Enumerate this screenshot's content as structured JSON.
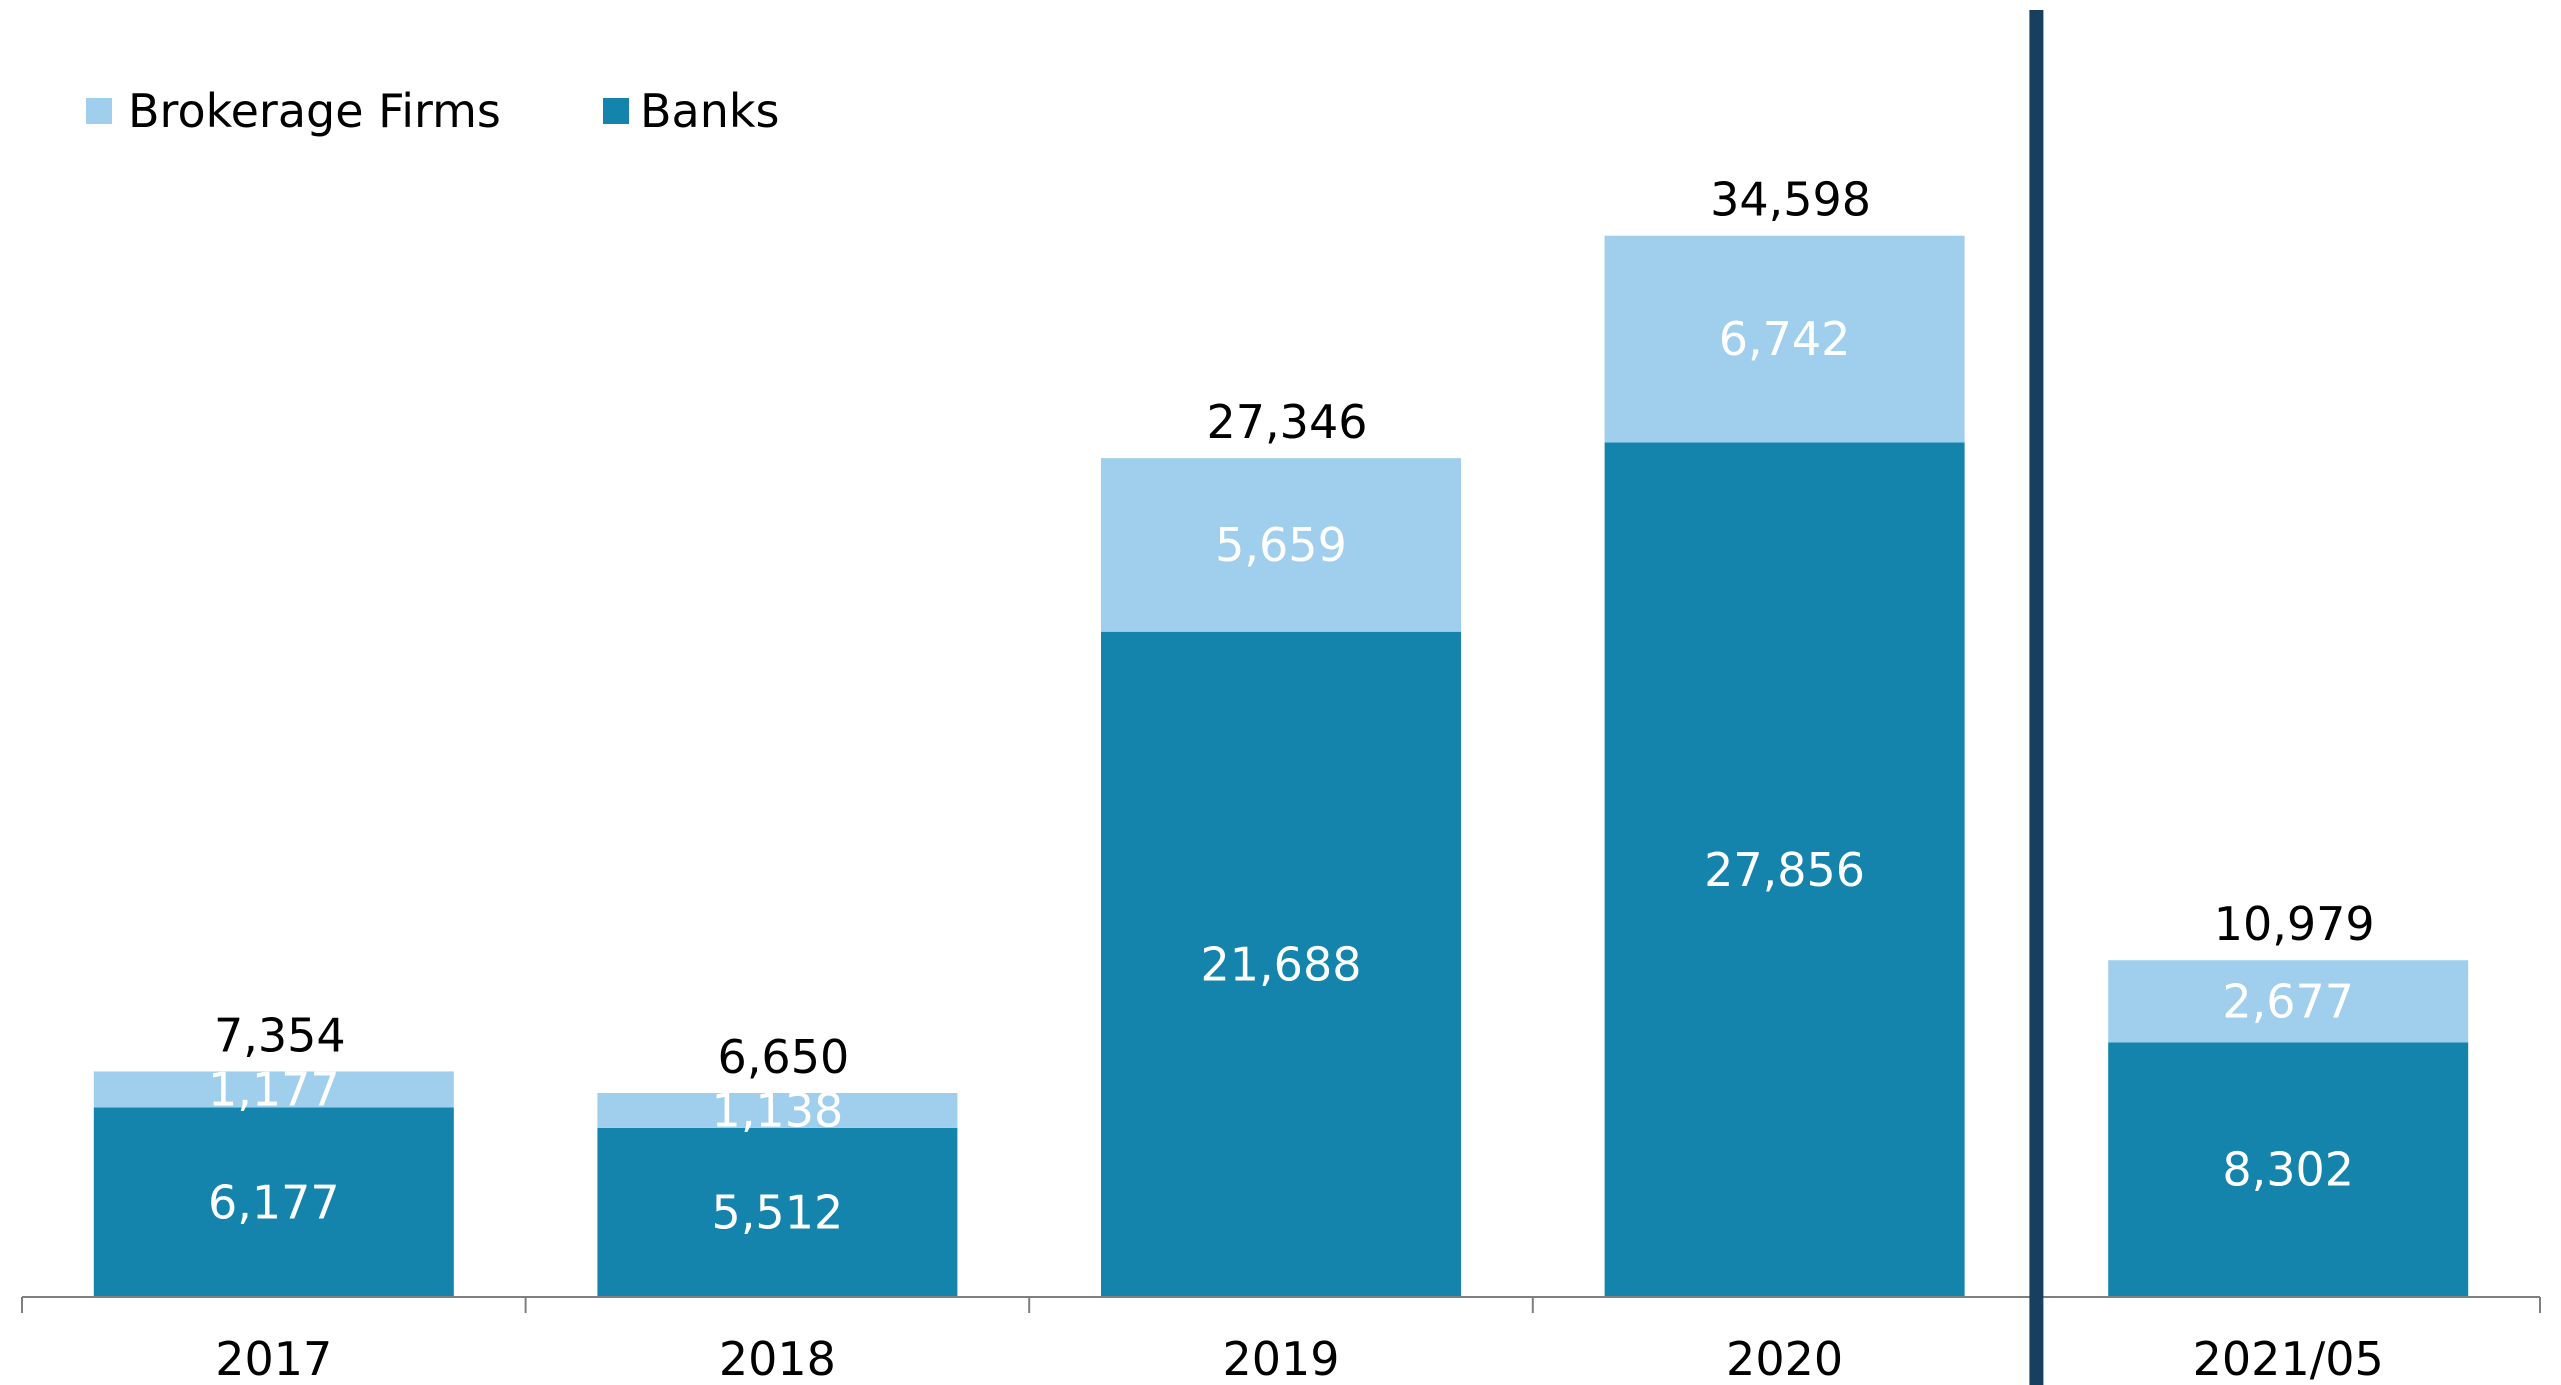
{
  "chart_data": {
    "type": "bar",
    "stacked": true,
    "categories": [
      "2017",
      "2018",
      "2019",
      "2020",
      "2021/05"
    ],
    "series": [
      {
        "name": "Banks",
        "values": [
          6177,
          5512,
          21688,
          27856,
          8302
        ],
        "value_labels": [
          "6,177",
          "5,512",
          "21,688",
          "27,856",
          "8,302"
        ],
        "color": "#1484ad"
      },
      {
        "name": "Brokerage Firms",
        "values": [
          1177,
          1138,
          5659,
          6742,
          2677
        ],
        "value_labels": [
          "1,177",
          "1,138",
          "5,659",
          "6,742",
          "2,677"
        ],
        "color": "#a0cfed"
      }
    ],
    "totals": [
      7354,
      6650,
      27346,
      34598,
      10979
    ],
    "total_labels": [
      "7,354",
      "6,650",
      "27,346",
      "34,598",
      "10,979"
    ],
    "legend": {
      "position": "top-left",
      "items": [
        {
          "label": "Brokerage Firms",
          "color": "#a0cfed"
        },
        {
          "label": "Banks",
          "color": "#1484ad"
        }
      ]
    },
    "title": "",
    "xlabel": "",
    "ylabel": "",
    "ylim": [
      0,
      40000
    ],
    "grid": false,
    "divider_before_category": "2021/05",
    "divider_color": "#17405f",
    "axis_color": "#7f7f7f"
  }
}
